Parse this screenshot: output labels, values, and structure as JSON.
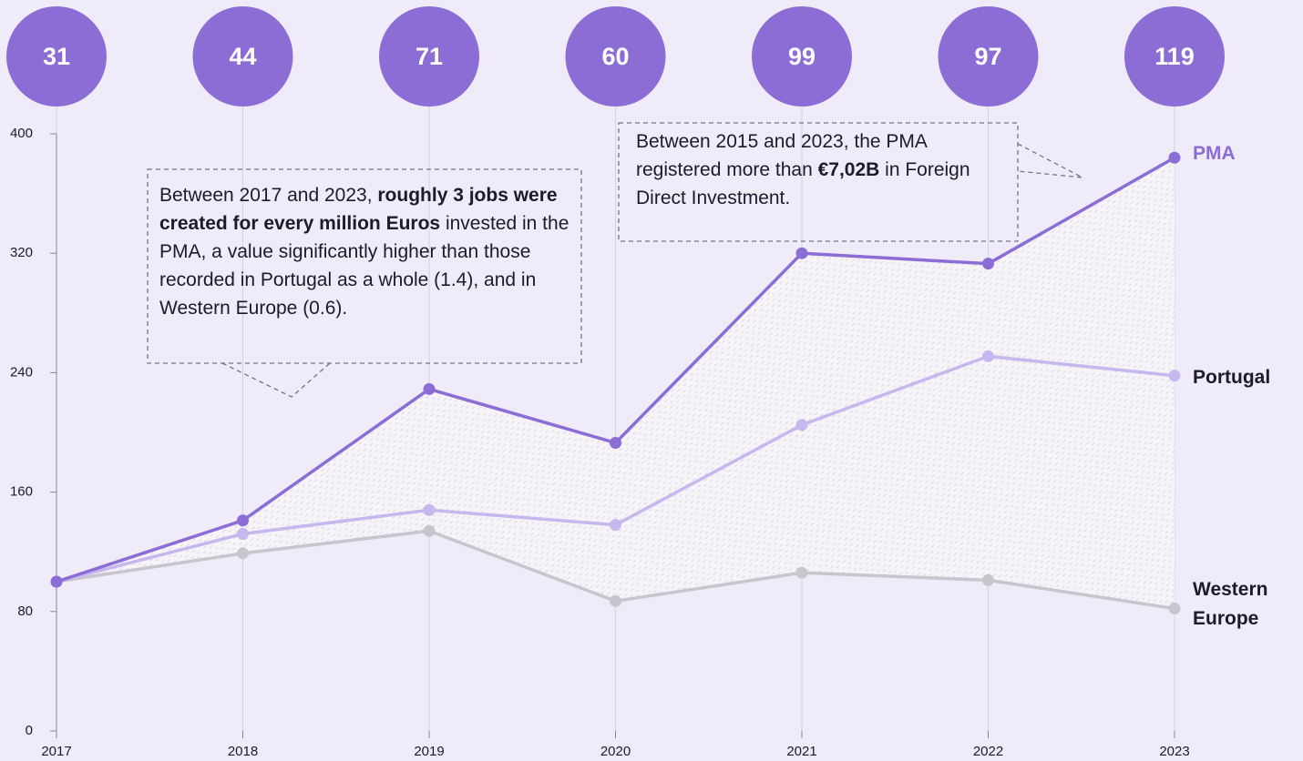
{
  "chart_data": {
    "type": "line",
    "x": [
      "2017",
      "2018",
      "2019",
      "2020",
      "2021",
      "2022",
      "2023"
    ],
    "series": [
      {
        "name": "PMA",
        "color": "#8b6dd5",
        "values": [
          100,
          141,
          229,
          193,
          320,
          313,
          384
        ]
      },
      {
        "name": "Portugal",
        "color": "#c6b8ef",
        "values": [
          100,
          132,
          148,
          138,
          205,
          251,
          238
        ]
      },
      {
        "name": "Western Europe",
        "color": "#c8c6cc",
        "values": [
          100,
          119,
          134,
          87,
          106,
          101,
          82
        ]
      }
    ],
    "top_values": [
      31,
      44,
      71,
      60,
      99,
      97,
      119
    ],
    "top_color": "#8b6dd5",
    "ylim": [
      0,
      400
    ],
    "yticks": [
      0,
      80,
      160,
      240,
      320,
      400
    ],
    "annotations": [
      {
        "segments": [
          {
            "text": "Between 2017 and 2023, ",
            "bold": false
          },
          {
            "text": "roughly 3 jobs were created for every million Euros",
            "bold": true
          },
          {
            "text": " invested in the PMA, a value significantly higher than those recorded in Portugal as a whole (1.4), and in Western Europe (0.6).",
            "bold": false
          }
        ]
      },
      {
        "segments": [
          {
            "text": "Between 2015 and 2023, the PMA registered more than ",
            "bold": false
          },
          {
            "text": "€7,02B",
            "bold": true
          },
          {
            "text": " in Foreign Direct Investment.",
            "bold": false
          }
        ]
      }
    ]
  }
}
